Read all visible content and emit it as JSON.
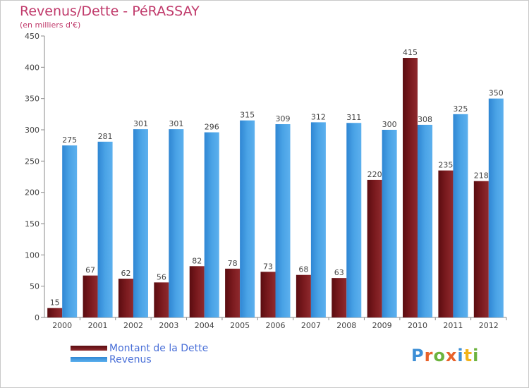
{
  "title": "Revenus/Dette - PéRASSAY",
  "subtitle": "(en milliers d'€)",
  "legend": [
    {
      "label": "Montant de la Dette",
      "color": "#7a1418"
    },
    {
      "label": "Revenus",
      "color": "#4aa3e6"
    }
  ],
  "logo": {
    "text": "Proxiti",
    "letters": [
      "P",
      "r",
      "o",
      "x",
      "i",
      "t",
      "i"
    ],
    "colors": [
      "#3d8fd6",
      "#e8622a",
      "#6cb33e",
      "#e8622a",
      "#3d8fd6",
      "#f2b31b",
      "#6cb33e"
    ]
  },
  "chart_data": {
    "type": "bar",
    "categories": [
      "2000",
      "2001",
      "2002",
      "2003",
      "2004",
      "2005",
      "2006",
      "2007",
      "2008",
      "2009",
      "2010",
      "2011",
      "2012"
    ],
    "series": [
      {
        "name": "Montant de la Dette",
        "color": "#7a1418",
        "values": [
          15,
          67,
          62,
          56,
          82,
          78,
          73,
          68,
          63,
          220,
          415,
          235,
          218
        ]
      },
      {
        "name": "Revenus",
        "color": "#4aa3e6",
        "values": [
          275,
          281,
          301,
          301,
          296,
          315,
          309,
          312,
          311,
          300,
          308,
          325,
          350
        ]
      }
    ],
    "title": "Revenus/Dette - PéRASSAY",
    "subtitle": "(en milliers d'€)",
    "ylim": [
      0,
      450
    ],
    "yticks": [
      0,
      50,
      100,
      150,
      200,
      250,
      300,
      350,
      400,
      450
    ],
    "grid": false,
    "legend_position": "bottom-left"
  }
}
